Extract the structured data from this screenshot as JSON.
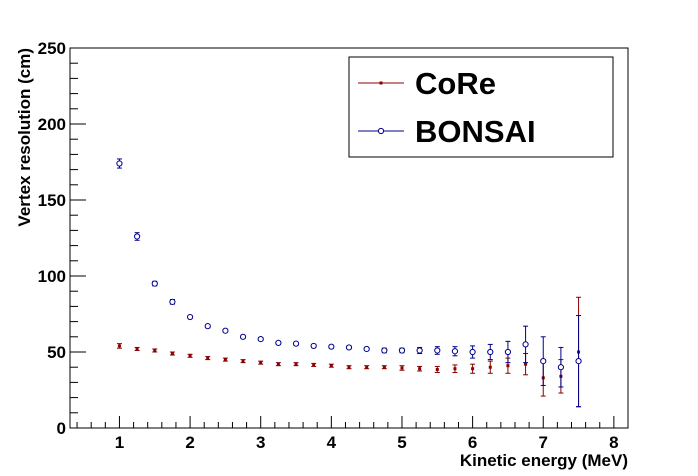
{
  "chart_data": {
    "type": "scatter",
    "title": "",
    "xlabel": "Kinetic energy (MeV)",
    "ylabel": "Vertex resolution (cm)",
    "xlim": [
      0.3,
      8.2
    ],
    "ylim": [
      0,
      250
    ],
    "xticks": [
      "1",
      "2",
      "3",
      "4",
      "5",
      "6",
      "7",
      "8"
    ],
    "yticks": [
      "0",
      "50",
      "100",
      "150",
      "200",
      "250"
    ],
    "grid": false,
    "legend_position": "top-right",
    "series": [
      {
        "name": "CoRe",
        "color": "#8b0000",
        "marker": "dot",
        "x": [
          1.0,
          1.25,
          1.5,
          1.75,
          2.0,
          2.25,
          2.5,
          2.75,
          3.0,
          3.25,
          3.5,
          3.75,
          4.0,
          4.25,
          4.5,
          4.75,
          5.0,
          5.25,
          5.5,
          5.75,
          6.0,
          6.25,
          6.5,
          6.75,
          7.0,
          7.25,
          7.5
        ],
        "y": [
          54,
          52,
          51,
          49,
          47.5,
          46,
          45,
          44,
          43,
          42,
          42,
          41.5,
          41,
          40,
          40,
          40,
          39.5,
          39,
          38.5,
          39,
          39,
          40,
          41,
          42,
          33,
          34,
          50
        ],
        "err": [
          1.5,
          1,
          1,
          1,
          1,
          1,
          1,
          1,
          1,
          1,
          1,
          1,
          1,
          1,
          1,
          1,
          1.5,
          1.5,
          2,
          2.5,
          3,
          4,
          5,
          7,
          12,
          11,
          36
        ]
      },
      {
        "name": "BONSAI",
        "color": "#00008b",
        "marker": "open-circle",
        "x": [
          1.0,
          1.25,
          1.5,
          1.75,
          2.0,
          2.25,
          2.5,
          2.75,
          3.0,
          3.25,
          3.5,
          3.75,
          4.0,
          4.25,
          4.5,
          4.75,
          5.0,
          5.25,
          5.5,
          5.75,
          6.0,
          6.25,
          6.5,
          6.75,
          7.0,
          7.25,
          7.5
        ],
        "y": [
          174,
          126,
          95,
          83,
          73,
          67,
          64,
          60,
          58.5,
          56,
          55.5,
          54,
          53.5,
          53,
          52,
          51,
          51,
          51,
          51,
          50.5,
          50,
          50,
          50,
          55,
          44,
          40,
          44
        ],
        "err": [
          3,
          2.5,
          1.5,
          1.5,
          1,
          1,
          1,
          1,
          1,
          1,
          1,
          1,
          1,
          1,
          1,
          1.5,
          1.5,
          2,
          2.5,
          3,
          4,
          5,
          7,
          12,
          16,
          13,
          30
        ]
      }
    ]
  }
}
